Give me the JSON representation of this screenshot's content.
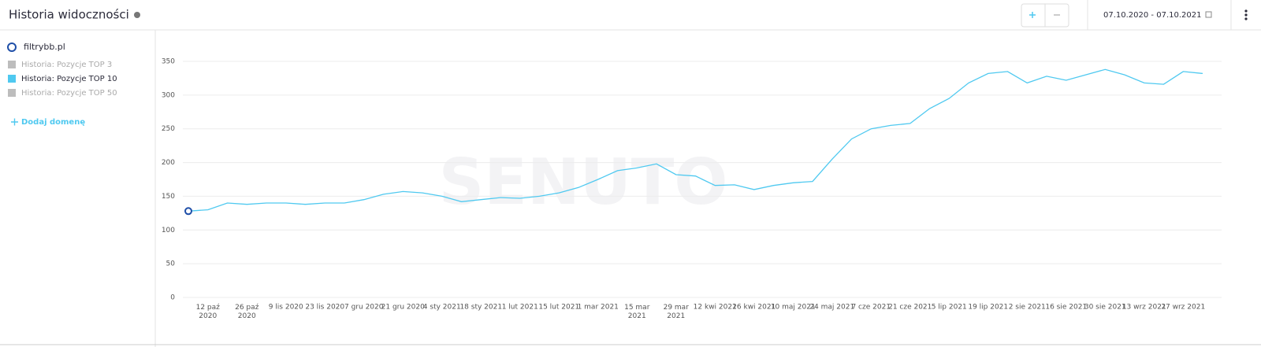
{
  "header": {
    "title": "Historia widoczności",
    "date_range": "07.10.2020 - 07.10.2021"
  },
  "sidebar": {
    "domain": "filtrybb.pl",
    "legend": [
      {
        "label": "Historia: Pozycje TOP 3",
        "color": "#bdbdbd"
      },
      {
        "label": "Historia: Pozycje TOP 50",
        "color": "#bdbdbd"
      }
    ],
    "add_domain": "Dodaj domenę"
  },
  "watermark": "SENUTO",
  "chart_data": {
    "type": "line",
    "categories": [
      null,
      "12 paź\n2020",
      null,
      "26 paź\n2020",
      null,
      "9 lis 2020",
      null,
      "23 lis 2020",
      null,
      "7 gru 2020",
      null,
      "21 gru 2020",
      null,
      "4 sty 2021",
      null,
      "18 sty 2021",
      null,
      "1 lut 2021",
      null,
      "15 lut 2021",
      null,
      "1 mar 2021",
      null,
      "15 mar\n2021",
      null,
      "29 mar\n2021",
      null,
      "12 kwi 2021",
      null,
      "26 kwi 2021",
      null,
      "10 maj 2021",
      null,
      "24 maj 2021",
      null,
      "7 cze 2021",
      null,
      "21 cze 2021",
      null,
      "5 lip 2021",
      null,
      "19 lip 2021",
      null,
      "2 sie 2021",
      null,
      "16 sie 2021",
      null,
      "30 sie 2021",
      null,
      "13 wrz 2021",
      null,
      "27 wrz 2021",
      null
    ],
    "series": [
      {
        "name": "Historia: Pozycje TOP 10",
        "color": "#4fc9f0",
        "values": [
          128,
          130,
          140,
          138,
          140,
          140,
          138,
          140,
          140,
          145,
          153,
          157,
          155,
          150,
          142,
          145,
          148,
          147,
          150,
          155,
          163,
          175,
          188,
          192,
          198,
          182,
          180,
          166,
          167,
          160,
          166,
          170,
          172,
          205,
          235,
          250,
          255,
          258,
          280,
          295,
          318,
          332,
          335,
          318,
          328,
          322,
          330,
          338,
          330,
          318,
          316,
          335,
          332
        ]
      }
    ],
    "ylim": [
      0,
      350
    ],
    "yticks": [
      0,
      50,
      100,
      150,
      200,
      250,
      300,
      350
    ],
    "grid": true
  }
}
